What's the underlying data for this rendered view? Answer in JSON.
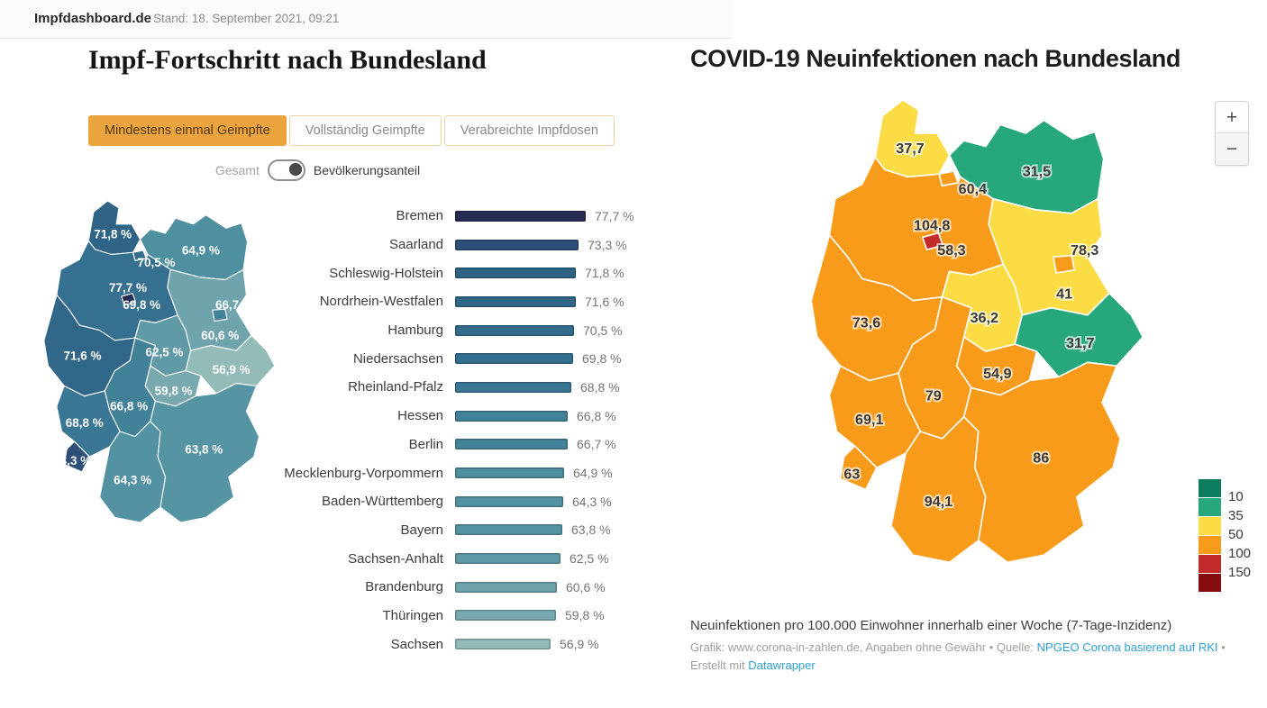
{
  "header": {
    "brand": "Impfdashboard.de",
    "stand": "Stand: 18. September 2021, 09:21"
  },
  "impf": {
    "title": "Impf-Fortschritt nach Bundesland",
    "tabs": [
      {
        "label": "Mindestens einmal Geimpfte",
        "active": true
      },
      {
        "label": "Vollständig Geimpfte",
        "active": false
      },
      {
        "label": "Verabreichte Impfdosen",
        "active": false
      }
    ],
    "toggle": {
      "off_label": "Gesamt",
      "on_label": "Bevölkerungsanteil",
      "state": "on"
    }
  },
  "covid": {
    "title": "COVID-19 Neuinfektionen nach Bundesland",
    "zoom_in": "+",
    "zoom_out": "−",
    "legend": {
      "colors": [
        "#0e7c5f",
        "#27a77c",
        "#fbdc45",
        "#f89b1b",
        "#c32a2a",
        "#860d0e"
      ],
      "breaks": [
        "10",
        "35",
        "50",
        "100",
        "150"
      ]
    },
    "subtitle": "Neuinfektionen pro 100.000 Einwohner innerhalb einer Woche (7-Tage-Inzidenz)",
    "credit_prefix": "Grafik: www.corona-in-zahlen.de, Angaben ohne Gewähr • Quelle: ",
    "credit_link1": "NPGEO Corona basierend auf RKI",
    "credit_suffix": " •",
    "credit_line2_prefix": "Erstellt mit ",
    "credit_link2": "Datawrapper"
  },
  "chart_data": [
    {
      "type": "bar",
      "title": "Impf-Fortschritt nach Bundesland",
      "metric": "Mindestens einmal Geimpfte (Bevölkerungsanteil)",
      "orientation": "horizontal",
      "unit": "%",
      "xlim": [
        0,
        80
      ],
      "points": [
        {
          "id": "HB",
          "label": "Bremen",
          "value": 77.7,
          "value_label": "77,7 %",
          "color": "#272c55"
        },
        {
          "id": "SL",
          "label": "Saarland",
          "value": 73.3,
          "value_label": "73,3 %",
          "color": "#2d4f79"
        },
        {
          "id": "SH",
          "label": "Schleswig-Holstein",
          "value": 71.8,
          "value_label": "71,8 %",
          "color": "#2f6486"
        },
        {
          "id": "NW",
          "label": "Nordrhein-Westfalen",
          "value": 71.6,
          "value_label": "71,6 %",
          "color": "#306688"
        },
        {
          "id": "HH",
          "label": "Hamburg",
          "value": 70.5,
          "value_label": "70,5 %",
          "color": "#336c8d"
        },
        {
          "id": "NI",
          "label": "Niedersachsen",
          "value": 69.8,
          "value_label": "69,8 %",
          "color": "#357090"
        },
        {
          "id": "RP",
          "label": "Rheinland-Pfalz",
          "value": 68.8,
          "value_label": "68,8 %",
          "color": "#3a7794"
        },
        {
          "id": "HE",
          "label": "Hessen",
          "value": 66.8,
          "value_label": "66,8 %",
          "color": "#428298"
        },
        {
          "id": "BE",
          "label": "Berlin",
          "value": 66.7,
          "value_label": "66,7 %",
          "color": "#438399"
        },
        {
          "id": "MV",
          "label": "Mecklenburg-Vorpommern",
          "value": 64.9,
          "value_label": "64,9 %",
          "color": "#4e8fa0"
        },
        {
          "id": "BW",
          "label": "Baden-Württemberg",
          "value": 64.3,
          "value_label": "64,3 %",
          "color": "#5292a2"
        },
        {
          "id": "BY",
          "label": "Bayern",
          "value": 63.8,
          "value_label": "63,8 %",
          "color": "#5594a3"
        },
        {
          "id": "ST",
          "label": "Sachsen-Anhalt",
          "value": 62.5,
          "value_label": "62,5 %",
          "color": "#5f9aa6"
        },
        {
          "id": "BB",
          "label": "Brandenburg",
          "value": 60.6,
          "value_label": "60,6 %",
          "color": "#6fa4ac"
        },
        {
          "id": "TH",
          "label": "Thüringen",
          "value": 59.8,
          "value_label": "59,8 %",
          "color": "#78a9af"
        },
        {
          "id": "SN",
          "label": "Sachsen",
          "value": 56.9,
          "value_label": "56,9 %",
          "color": "#93bcb8"
        }
      ]
    },
    {
      "type": "heatmap",
      "subtype": "choropleth-map",
      "title": "COVID-19 Neuinfektionen nach Bundesland",
      "metric": "7-Tage-Inzidenz pro 100.000 Einwohner",
      "legend_breaks": [
        10,
        35,
        50,
        100,
        150
      ],
      "legend_colors": [
        "#0e7c5f",
        "#27a77c",
        "#fbdc45",
        "#f89b1b",
        "#c32a2a",
        "#860d0e"
      ],
      "points": [
        {
          "id": "SH",
          "label": "Schleswig-Holstein",
          "value": 37.7,
          "value_label": "37,7",
          "color": "#fbdc45"
        },
        {
          "id": "HH",
          "label": "Hamburg",
          "value": 60.4,
          "value_label": "60,4",
          "color": "#f89b1b"
        },
        {
          "id": "MV",
          "label": "Mecklenburg-Vorpommern",
          "value": 31.5,
          "value_label": "31,5",
          "color": "#27a77c"
        },
        {
          "id": "HB",
          "label": "Bremen",
          "value": 104.8,
          "value_label": "104,8",
          "color": "#c32a2a"
        },
        {
          "id": "NI",
          "label": "Niedersachsen",
          "value": 58.3,
          "value_label": "58,3",
          "color": "#f89b1b"
        },
        {
          "id": "BE",
          "label": "Berlin",
          "value": 78.3,
          "value_label": "78,3",
          "color": "#f89b1b"
        },
        {
          "id": "BB",
          "label": "Brandenburg",
          "value": 41,
          "value_label": "41",
          "color": "#fbdc45"
        },
        {
          "id": "ST",
          "label": "Sachsen-Anhalt",
          "value": 36.2,
          "value_label": "36,2",
          "color": "#fbdc45"
        },
        {
          "id": "SN",
          "label": "Sachsen",
          "value": 31.7,
          "value_label": "31,7",
          "color": "#27a77c"
        },
        {
          "id": "TH",
          "label": "Thüringen",
          "value": 54.9,
          "value_label": "54,9",
          "color": "#f89b1b"
        },
        {
          "id": "NW",
          "label": "Nordrhein-Westfalen",
          "value": 73.6,
          "value_label": "73,6",
          "color": "#f89b1b"
        },
        {
          "id": "HE",
          "label": "Hessen",
          "value": 79,
          "value_label": "79",
          "color": "#f89b1b"
        },
        {
          "id": "RP",
          "label": "Rheinland-Pfalz",
          "value": 69.1,
          "value_label": "69,1",
          "color": "#f89b1b"
        },
        {
          "id": "SL",
          "label": "Saarland",
          "value": 63,
          "value_label": "63",
          "color": "#f89b1b"
        },
        {
          "id": "BW",
          "label": "Baden-Württemberg",
          "value": 94.1,
          "value_label": "94,1",
          "color": "#f89b1b"
        },
        {
          "id": "BY",
          "label": "Bayern",
          "value": 86,
          "value_label": "86",
          "color": "#f89b1b"
        }
      ]
    }
  ]
}
